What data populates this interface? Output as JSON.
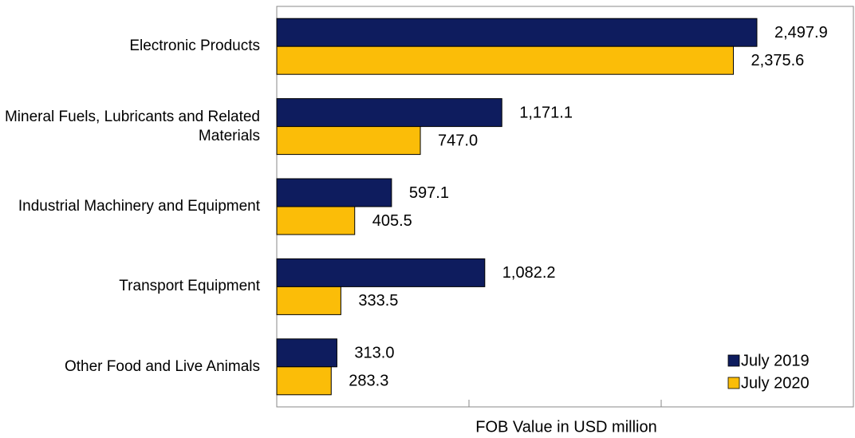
{
  "chart_data": {
    "type": "hbar",
    "categories": [
      "Electronic Products",
      "Mineral Fuels, Lubricants and Related Materials",
      "Industrial Machinery and Equipment",
      "Transport Equipment",
      "Other Food and Live Animals"
    ],
    "series": [
      {
        "name": "July 2019",
        "color": "#0e1c5e",
        "values": [
          2497.9,
          1171.1,
          597.1,
          1082.2,
          313.0
        ],
        "value_labels": [
          "2,497.9",
          "1,171.1",
          "597.1",
          "1,082.2",
          "313.0"
        ]
      },
      {
        "name": "July 2020",
        "color": "#fbbd08",
        "values": [
          2375.6,
          747.0,
          405.5,
          333.5,
          283.3
        ],
        "value_labels": [
          "2,375.6",
          "747.0",
          "405.5",
          "333.5",
          "283.3"
        ]
      }
    ],
    "xlabel": "FOB  Value in USD million",
    "xlim": [
      0,
      3000
    ],
    "xticks": [
      0,
      1000,
      2000,
      3000
    ],
    "legend": "lower right"
  }
}
